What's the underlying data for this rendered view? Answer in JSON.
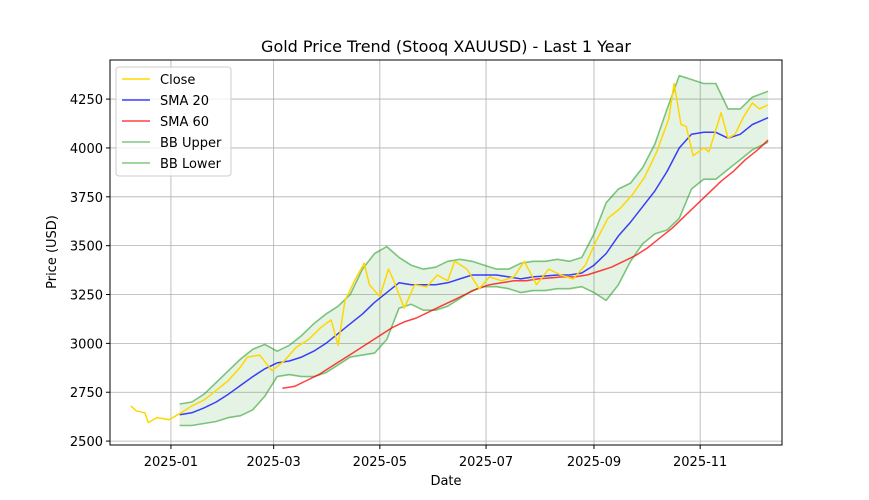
{
  "chart_data": {
    "type": "line",
    "title": "Gold Price Trend (Stooq XAUUSD) - Last 1 Year",
    "xlabel": "Date",
    "ylabel": "Price (USD)",
    "grid": true,
    "legend_position": "top-left",
    "xlim": [
      "2024-11-27",
      "2025-12-18"
    ],
    "ylim": [
      2480,
      4450
    ],
    "x_ticks": [
      "2025-01-01",
      "2025-03-01",
      "2025-05-01",
      "2025-07-01",
      "2025-09-01",
      "2025-11-01"
    ],
    "x_tick_labels": [
      "2025-01",
      "2025-03",
      "2025-05",
      "2025-07",
      "2025-09",
      "2025-11"
    ],
    "y_ticks": [
      2500,
      2750,
      3000,
      3250,
      3500,
      3750,
      4000,
      4250
    ],
    "y_tick_labels": [
      "2500",
      "2750",
      "3000",
      "3250",
      "3500",
      "3750",
      "4000",
      "4250"
    ],
    "band": {
      "upper": "BB Upper",
      "lower": "BB Lower",
      "fill_color": "#2ca02c"
    },
    "series": [
      {
        "name": "Close",
        "color": "#ffd700",
        "points": [
          [
            "2024-12-09",
            2680
          ],
          [
            "2024-12-12",
            2655
          ],
          [
            "2024-12-17",
            2645
          ],
          [
            "2024-12-19",
            2595
          ],
          [
            "2024-12-24",
            2620
          ],
          [
            "2024-12-31",
            2610
          ],
          [
            "2025-01-06",
            2640
          ],
          [
            "2025-01-13",
            2680
          ],
          [
            "2025-01-20",
            2710
          ],
          [
            "2025-01-27",
            2760
          ],
          [
            "2025-02-03",
            2810
          ],
          [
            "2025-02-10",
            2880
          ],
          [
            "2025-02-14",
            2930
          ],
          [
            "2025-02-21",
            2940
          ],
          [
            "2025-02-28",
            2860
          ],
          [
            "2025-03-07",
            2910
          ],
          [
            "2025-03-14",
            2980
          ],
          [
            "2025-03-21",
            3020
          ],
          [
            "2025-03-28",
            3080
          ],
          [
            "2025-04-03",
            3120
          ],
          [
            "2025-04-07",
            2990
          ],
          [
            "2025-04-11",
            3220
          ],
          [
            "2025-04-17",
            3330
          ],
          [
            "2025-04-22",
            3410
          ],
          [
            "2025-04-25",
            3300
          ],
          [
            "2025-05-01",
            3240
          ],
          [
            "2025-05-06",
            3380
          ],
          [
            "2025-05-09",
            3320
          ],
          [
            "2025-05-15",
            3180
          ],
          [
            "2025-05-21",
            3300
          ],
          [
            "2025-05-28",
            3290
          ],
          [
            "2025-06-03",
            3350
          ],
          [
            "2025-06-09",
            3320
          ],
          [
            "2025-06-13",
            3420
          ],
          [
            "2025-06-20",
            3380
          ],
          [
            "2025-06-27",
            3280
          ],
          [
            "2025-07-03",
            3340
          ],
          [
            "2025-07-10",
            3320
          ],
          [
            "2025-07-17",
            3340
          ],
          [
            "2025-07-23",
            3420
          ],
          [
            "2025-07-30",
            3300
          ],
          [
            "2025-08-06",
            3380
          ],
          [
            "2025-08-13",
            3350
          ],
          [
            "2025-08-20",
            3330
          ],
          [
            "2025-08-27",
            3400
          ],
          [
            "2025-09-02",
            3520
          ],
          [
            "2025-09-09",
            3640
          ],
          [
            "2025-09-16",
            3690
          ],
          [
            "2025-09-23",
            3760
          ],
          [
            "2025-09-30",
            3850
          ],
          [
            "2025-10-07",
            3980
          ],
          [
            "2025-10-14",
            4150
          ],
          [
            "2025-10-17",
            4330
          ],
          [
            "2025-10-21",
            4120
          ],
          [
            "2025-10-24",
            4110
          ],
          [
            "2025-10-28",
            3960
          ],
          [
            "2025-11-03",
            4000
          ],
          [
            "2025-11-06",
            3980
          ],
          [
            "2025-11-13",
            4180
          ],
          [
            "2025-11-17",
            4050
          ],
          [
            "2025-11-21",
            4070
          ],
          [
            "2025-11-26",
            4160
          ],
          [
            "2025-12-01",
            4230
          ],
          [
            "2025-12-05",
            4200
          ],
          [
            "2025-12-10",
            4220
          ]
        ]
      },
      {
        "name": "SMA 20",
        "color": "#0000ff",
        "points": [
          [
            "2025-01-06",
            2635
          ],
          [
            "2025-01-13",
            2645
          ],
          [
            "2025-01-20",
            2670
          ],
          [
            "2025-01-27",
            2700
          ],
          [
            "2025-02-03",
            2740
          ],
          [
            "2025-02-10",
            2785
          ],
          [
            "2025-02-17",
            2830
          ],
          [
            "2025-02-24",
            2870
          ],
          [
            "2025-03-03",
            2900
          ],
          [
            "2025-03-10",
            2910
          ],
          [
            "2025-03-17",
            2930
          ],
          [
            "2025-03-24",
            2960
          ],
          [
            "2025-03-31",
            3000
          ],
          [
            "2025-04-07",
            3050
          ],
          [
            "2025-04-14",
            3100
          ],
          [
            "2025-04-21",
            3150
          ],
          [
            "2025-04-28",
            3210
          ],
          [
            "2025-05-05",
            3260
          ],
          [
            "2025-05-12",
            3310
          ],
          [
            "2025-05-19",
            3300
          ],
          [
            "2025-05-26",
            3300
          ],
          [
            "2025-06-02",
            3300
          ],
          [
            "2025-06-09",
            3310
          ],
          [
            "2025-06-16",
            3330
          ],
          [
            "2025-06-23",
            3350
          ],
          [
            "2025-06-30",
            3350
          ],
          [
            "2025-07-07",
            3350
          ],
          [
            "2025-07-14",
            3340
          ],
          [
            "2025-07-21",
            3330
          ],
          [
            "2025-07-28",
            3340
          ],
          [
            "2025-08-04",
            3345
          ],
          [
            "2025-08-11",
            3350
          ],
          [
            "2025-08-18",
            3350
          ],
          [
            "2025-08-25",
            3360
          ],
          [
            "2025-09-01",
            3400
          ],
          [
            "2025-09-08",
            3460
          ],
          [
            "2025-09-15",
            3550
          ],
          [
            "2025-09-22",
            3620
          ],
          [
            "2025-09-29",
            3700
          ],
          [
            "2025-10-06",
            3780
          ],
          [
            "2025-10-13",
            3880
          ],
          [
            "2025-10-20",
            4000
          ],
          [
            "2025-10-27",
            4070
          ],
          [
            "2025-11-03",
            4080
          ],
          [
            "2025-11-10",
            4080
          ],
          [
            "2025-11-17",
            4050
          ],
          [
            "2025-11-24",
            4070
          ],
          [
            "2025-12-01",
            4120
          ],
          [
            "2025-12-10",
            4155
          ]
        ]
      },
      {
        "name": "SMA 60",
        "color": "#ff0000",
        "points": [
          [
            "2025-03-06",
            2770
          ],
          [
            "2025-03-13",
            2780
          ],
          [
            "2025-03-20",
            2810
          ],
          [
            "2025-03-27",
            2840
          ],
          [
            "2025-04-03",
            2880
          ],
          [
            "2025-04-10",
            2920
          ],
          [
            "2025-04-17",
            2960
          ],
          [
            "2025-04-24",
            3000
          ],
          [
            "2025-05-01",
            3040
          ],
          [
            "2025-05-08",
            3080
          ],
          [
            "2025-05-15",
            3110
          ],
          [
            "2025-05-22",
            3130
          ],
          [
            "2025-05-29",
            3160
          ],
          [
            "2025-06-05",
            3190
          ],
          [
            "2025-06-12",
            3220
          ],
          [
            "2025-06-19",
            3250
          ],
          [
            "2025-06-26",
            3280
          ],
          [
            "2025-07-03",
            3300
          ],
          [
            "2025-07-10",
            3310
          ],
          [
            "2025-07-17",
            3320
          ],
          [
            "2025-07-24",
            3320
          ],
          [
            "2025-07-31",
            3330
          ],
          [
            "2025-08-07",
            3335
          ],
          [
            "2025-08-14",
            3340
          ],
          [
            "2025-08-21",
            3340
          ],
          [
            "2025-08-28",
            3350
          ],
          [
            "2025-09-04",
            3370
          ],
          [
            "2025-09-11",
            3390
          ],
          [
            "2025-09-18",
            3420
          ],
          [
            "2025-09-25",
            3450
          ],
          [
            "2025-10-02",
            3490
          ],
          [
            "2025-10-09",
            3540
          ],
          [
            "2025-10-16",
            3590
          ],
          [
            "2025-10-23",
            3650
          ],
          [
            "2025-10-30",
            3710
          ],
          [
            "2025-11-06",
            3770
          ],
          [
            "2025-11-13",
            3830
          ],
          [
            "2025-11-20",
            3880
          ],
          [
            "2025-11-27",
            3940
          ],
          [
            "2025-12-04",
            3990
          ],
          [
            "2025-12-10",
            4040
          ]
        ]
      },
      {
        "name": "BB Upper",
        "color": "#2ca02c",
        "points": [
          [
            "2025-01-06",
            2690
          ],
          [
            "2025-01-13",
            2700
          ],
          [
            "2025-01-20",
            2740
          ],
          [
            "2025-01-27",
            2800
          ],
          [
            "2025-02-03",
            2860
          ],
          [
            "2025-02-10",
            2920
          ],
          [
            "2025-02-17",
            2970
          ],
          [
            "2025-02-24",
            2995
          ],
          [
            "2025-03-03",
            2960
          ],
          [
            "2025-03-10",
            2990
          ],
          [
            "2025-03-17",
            3040
          ],
          [
            "2025-03-24",
            3100
          ],
          [
            "2025-03-31",
            3150
          ],
          [
            "2025-04-07",
            3190
          ],
          [
            "2025-04-14",
            3250
          ],
          [
            "2025-04-21",
            3380
          ],
          [
            "2025-04-28",
            3460
          ],
          [
            "2025-05-05",
            3495
          ],
          [
            "2025-05-12",
            3440
          ],
          [
            "2025-05-19",
            3400
          ],
          [
            "2025-05-26",
            3380
          ],
          [
            "2025-06-02",
            3390
          ],
          [
            "2025-06-09",
            3420
          ],
          [
            "2025-06-16",
            3430
          ],
          [
            "2025-06-23",
            3420
          ],
          [
            "2025-06-30",
            3400
          ],
          [
            "2025-07-07",
            3380
          ],
          [
            "2025-07-14",
            3380
          ],
          [
            "2025-07-21",
            3410
          ],
          [
            "2025-07-28",
            3420
          ],
          [
            "2025-08-04",
            3420
          ],
          [
            "2025-08-11",
            3430
          ],
          [
            "2025-08-18",
            3420
          ],
          [
            "2025-08-25",
            3440
          ],
          [
            "2025-09-01",
            3560
          ],
          [
            "2025-09-08",
            3720
          ],
          [
            "2025-09-15",
            3790
          ],
          [
            "2025-09-22",
            3820
          ],
          [
            "2025-09-29",
            3900
          ],
          [
            "2025-10-06",
            4020
          ],
          [
            "2025-10-13",
            4200
          ],
          [
            "2025-10-20",
            4370
          ],
          [
            "2025-10-27",
            4350
          ],
          [
            "2025-11-03",
            4330
          ],
          [
            "2025-11-10",
            4330
          ],
          [
            "2025-11-17",
            4200
          ],
          [
            "2025-11-24",
            4200
          ],
          [
            "2025-12-01",
            4260
          ],
          [
            "2025-12-10",
            4290
          ]
        ]
      },
      {
        "name": "BB Lower",
        "color": "#2ca02c",
        "points": [
          [
            "2025-01-06",
            2580
          ],
          [
            "2025-01-13",
            2580
          ],
          [
            "2025-01-20",
            2590
          ],
          [
            "2025-01-27",
            2600
          ],
          [
            "2025-02-03",
            2620
          ],
          [
            "2025-02-10",
            2630
          ],
          [
            "2025-02-17",
            2660
          ],
          [
            "2025-02-24",
            2730
          ],
          [
            "2025-03-03",
            2830
          ],
          [
            "2025-03-10",
            2840
          ],
          [
            "2025-03-17",
            2830
          ],
          [
            "2025-03-24",
            2830
          ],
          [
            "2025-03-31",
            2850
          ],
          [
            "2025-04-07",
            2890
          ],
          [
            "2025-04-14",
            2930
          ],
          [
            "2025-04-21",
            2940
          ],
          [
            "2025-04-28",
            2950
          ],
          [
            "2025-05-05",
            3020
          ],
          [
            "2025-05-12",
            3180
          ],
          [
            "2025-05-19",
            3200
          ],
          [
            "2025-05-26",
            3170
          ],
          [
            "2025-06-02",
            3170
          ],
          [
            "2025-06-09",
            3190
          ],
          [
            "2025-06-16",
            3230
          ],
          [
            "2025-06-23",
            3270
          ],
          [
            "2025-06-30",
            3290
          ],
          [
            "2025-07-07",
            3290
          ],
          [
            "2025-07-14",
            3280
          ],
          [
            "2025-07-21",
            3260
          ],
          [
            "2025-07-28",
            3270
          ],
          [
            "2025-08-04",
            3270
          ],
          [
            "2025-08-11",
            3280
          ],
          [
            "2025-08-18",
            3280
          ],
          [
            "2025-08-25",
            3290
          ],
          [
            "2025-09-01",
            3260
          ],
          [
            "2025-09-08",
            3220
          ],
          [
            "2025-09-15",
            3300
          ],
          [
            "2025-09-22",
            3420
          ],
          [
            "2025-09-29",
            3510
          ],
          [
            "2025-10-06",
            3560
          ],
          [
            "2025-10-13",
            3580
          ],
          [
            "2025-10-20",
            3640
          ],
          [
            "2025-10-27",
            3790
          ],
          [
            "2025-11-03",
            3840
          ],
          [
            "2025-11-10",
            3840
          ],
          [
            "2025-11-17",
            3890
          ],
          [
            "2025-11-24",
            3940
          ],
          [
            "2025-12-01",
            3990
          ],
          [
            "2025-12-10",
            4030
          ]
        ]
      }
    ]
  }
}
